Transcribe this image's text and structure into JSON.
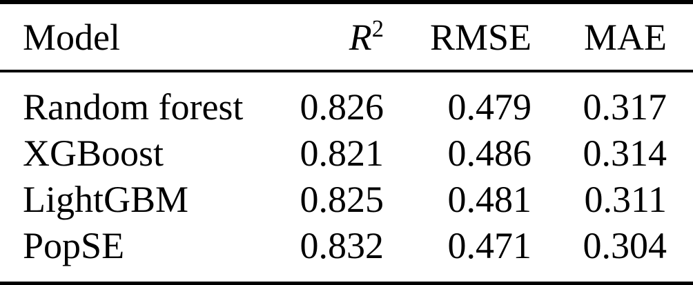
{
  "table": {
    "header": {
      "model": "Model",
      "r2_base": "R",
      "r2_sup": "2",
      "rmse": "RMSE",
      "mae": "MAE"
    },
    "rows": [
      {
        "model": "Random forest",
        "r2": "0.826",
        "rmse": "0.479",
        "mae": "0.317"
      },
      {
        "model": "XGBoost",
        "r2": "0.821",
        "rmse": "0.486",
        "mae": "0.314"
      },
      {
        "model": "LightGBM",
        "r2": "0.825",
        "rmse": "0.481",
        "mae": "0.311"
      },
      {
        "model": "PopSE",
        "r2": "0.832",
        "rmse": "0.471",
        "mae": "0.304"
      }
    ],
    "colors": {
      "text": "#000000",
      "background": "#ffffff",
      "rule": "#000000"
    }
  }
}
